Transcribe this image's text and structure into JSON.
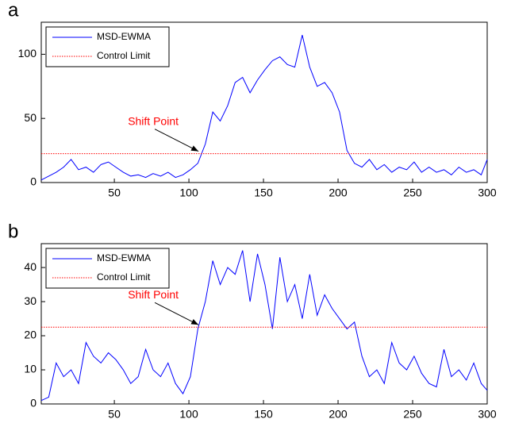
{
  "chart_data": [
    {
      "type": "line",
      "label": "a",
      "xlim": [
        1,
        300
      ],
      "ylim": [
        0,
        125
      ],
      "xticks": [
        50,
        100,
        150,
        200,
        250,
        300
      ],
      "yticks": [
        0,
        50,
        100
      ],
      "legend": "upper left",
      "annotation": {
        "text": "Shift Point",
        "x": 108,
        "y": 22.5
      },
      "series": [
        {
          "name": "MSD-EWMA",
          "color": "#0000ff",
          "style": "solid",
          "x": [
            1,
            6,
            11,
            16,
            21,
            26,
            31,
            36,
            41,
            46,
            51,
            56,
            61,
            66,
            71,
            76,
            81,
            86,
            91,
            96,
            101,
            106,
            111,
            116,
            121,
            126,
            131,
            136,
            141,
            146,
            151,
            156,
            161,
            166,
            171,
            176,
            181,
            186,
            191,
            196,
            201,
            206,
            211,
            216,
            221,
            226,
            231,
            236,
            241,
            246,
            251,
            256,
            261,
            266,
            271,
            276,
            281,
            286,
            291,
            296,
            300
          ],
          "values": [
            2,
            5,
            8,
            12,
            18,
            10,
            12,
            8,
            14,
            16,
            12,
            8,
            5,
            6,
            4,
            7,
            5,
            8,
            4,
            6,
            10,
            15,
            30,
            55,
            48,
            60,
            78,
            82,
            70,
            80,
            88,
            95,
            98,
            92,
            90,
            115,
            90,
            75,
            78,
            70,
            55,
            25,
            15,
            12,
            18,
            10,
            14,
            8,
            12,
            10,
            16,
            8,
            12,
            8,
            10,
            6,
            12,
            8,
            10,
            6,
            18
          ]
        },
        {
          "name": "Control Limit",
          "color": "#ff0000",
          "style": "dotted",
          "x": [
            1,
            300
          ],
          "values": [
            22.5,
            22.5
          ]
        }
      ]
    },
    {
      "type": "line",
      "label": "b",
      "xlim": [
        1,
        300
      ],
      "ylim": [
        0,
        47
      ],
      "xticks": [
        50,
        100,
        150,
        200,
        250,
        300
      ],
      "yticks": [
        0,
        10,
        20,
        30,
        40
      ],
      "legend": "upper left",
      "annotation": {
        "text": "Shift Point",
        "x": 108,
        "y": 22.5
      },
      "series": [
        {
          "name": "MSD-EWMA",
          "color": "#0000ff",
          "style": "solid",
          "x": [
            1,
            6,
            11,
            16,
            21,
            26,
            31,
            36,
            41,
            46,
            51,
            56,
            61,
            66,
            71,
            76,
            81,
            86,
            91,
            96,
            101,
            106,
            111,
            116,
            121,
            126,
            131,
            136,
            141,
            146,
            151,
            156,
            161,
            166,
            171,
            176,
            181,
            186,
            191,
            196,
            201,
            206,
            211,
            216,
            221,
            226,
            231,
            236,
            241,
            246,
            251,
            256,
            261,
            266,
            271,
            276,
            281,
            286,
            291,
            296,
            300
          ],
          "values": [
            1,
            2,
            12,
            8,
            10,
            6,
            18,
            14,
            12,
            15,
            13,
            10,
            6,
            8,
            16,
            10,
            8,
            12,
            6,
            3,
            8,
            22,
            30,
            42,
            35,
            40,
            38,
            45,
            30,
            44,
            35,
            22,
            43,
            30,
            35,
            25,
            38,
            26,
            32,
            28,
            25,
            22,
            24,
            14,
            8,
            10,
            6,
            18,
            12,
            10,
            14,
            9,
            6,
            5,
            16,
            8,
            10,
            7,
            12,
            6,
            4
          ]
        },
        {
          "name": "Control Limit",
          "color": "#ff0000",
          "style": "dotted",
          "x": [
            1,
            300
          ],
          "values": [
            22.5,
            22.5
          ]
        }
      ]
    }
  ]
}
